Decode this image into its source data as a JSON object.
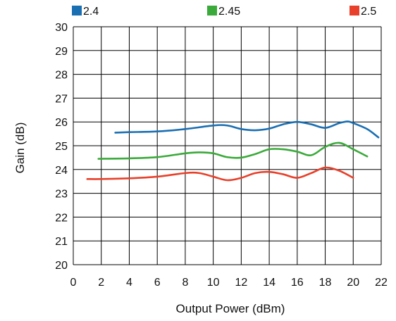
{
  "chart_data": {
    "type": "line",
    "title": "",
    "xlabel": "Output Power (dBm)",
    "ylabel": "Gain (dB)",
    "xlim": [
      0,
      22
    ],
    "ylim": [
      20,
      30
    ],
    "xticks": [
      "0",
      "2",
      "4",
      "6",
      "8",
      "10",
      "12",
      "14",
      "16",
      "18",
      "20",
      "22"
    ],
    "yticks": [
      "20",
      "21",
      "22",
      "23",
      "24",
      "25",
      "26",
      "27",
      "28",
      "29",
      "30"
    ],
    "grid": true,
    "legend_position": "top",
    "series": [
      {
        "name": "2.4",
        "color": "#1a6fb3",
        "x": [
          3,
          4,
          6,
          8,
          10,
          11,
          12,
          13,
          14,
          15,
          16,
          17,
          18,
          19,
          19.6,
          20,
          21,
          21.8
        ],
        "y": [
          25.55,
          25.57,
          25.6,
          25.7,
          25.85,
          25.85,
          25.7,
          25.65,
          25.72,
          25.9,
          26.0,
          25.9,
          25.75,
          25.95,
          26.02,
          25.95,
          25.7,
          25.35
        ]
      },
      {
        "name": "2.45",
        "color": "#3aaa3a",
        "x": [
          1.8,
          4,
          6,
          8,
          9,
          10,
          11,
          12,
          13,
          14,
          15,
          16,
          17,
          18,
          19,
          20,
          21
        ],
        "y": [
          24.45,
          24.47,
          24.52,
          24.68,
          24.72,
          24.68,
          24.52,
          24.5,
          24.65,
          24.85,
          24.85,
          24.75,
          24.6,
          24.95,
          25.12,
          24.85,
          24.55
        ]
      },
      {
        "name": "2.5",
        "color": "#e8402a",
        "x": [
          1,
          2,
          4,
          6,
          8,
          9,
          10,
          11,
          12,
          13,
          14,
          15,
          16,
          17,
          18,
          19,
          20
        ],
        "y": [
          23.6,
          23.6,
          23.63,
          23.7,
          23.85,
          23.85,
          23.7,
          23.55,
          23.65,
          23.85,
          23.9,
          23.8,
          23.65,
          23.85,
          24.08,
          23.95,
          23.65
        ]
      }
    ]
  }
}
